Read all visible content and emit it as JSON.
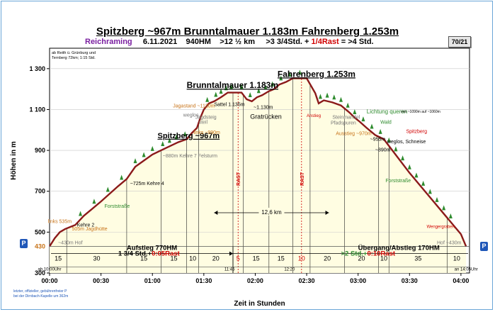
{
  "page_badge": "70/21",
  "title": {
    "part1": "Spitzberg ~967m",
    "part2": "Brunntalmauer 1.183m",
    "part3": "Fahrenberg 1.253m"
  },
  "subtitle": {
    "brand": "Reichraming",
    "date": "6.11.2021",
    "hm": "940HM",
    "km": ">12 ½ km",
    "time_pre": ">3 3/4Std. +",
    "rest": "1/4Rast",
    "total": "= >4 Std."
  },
  "start_note": [
    "ab Reith ü. Grünburg und",
    "Ternberg 72km; 1:15 Std."
  ],
  "footer_note": [
    "letzter, offizieller, gebührenfreier P",
    "bei der Dirnbach-Kapelle um 362m"
  ],
  "colors": {
    "profile": "#8b1a1a",
    "fill": "#fffde2",
    "line": "#000000",
    "green_label": "#2e8b2e",
    "orange_label": "#c8741a",
    "red_label": "#d00000",
    "grey_label": "#777777",
    "brand": "#7a1fa0",
    "markers": "#1f57b8"
  },
  "chart_data": {
    "type": "area",
    "ylabel": "Höhen in m",
    "xlabel": "Zeit in Stunden",
    "ylim": [
      300,
      1400
    ],
    "xlim_minutes": [
      0,
      245
    ],
    "y_ticks": [
      "300",
      "500",
      "700",
      "900",
      "1 100",
      "1 300"
    ],
    "x_ticks": [
      {
        "min": 0,
        "label": "00:00"
      },
      {
        "min": 30,
        "label": "00:30"
      },
      {
        "min": 60,
        "label": "01:00"
      },
      {
        "min": 90,
        "label": "01:30"
      },
      {
        "min": 120,
        "label": "02:00"
      },
      {
        "min": 150,
        "label": "02:30"
      },
      {
        "min": 180,
        "label": "03:00"
      },
      {
        "min": 210,
        "label": "03:30"
      },
      {
        "min": 240,
        "label": "04:00"
      }
    ],
    "profile": {
      "x": [
        0,
        3,
        6,
        9,
        12,
        15,
        20,
        30,
        40,
        45,
        50,
        55,
        60,
        65,
        70,
        75,
        80,
        83,
        86,
        88,
        90,
        93,
        96,
        100,
        104,
        108,
        112,
        115,
        118,
        121,
        124,
        128,
        131,
        134,
        138,
        142,
        146,
        150,
        155,
        157,
        160,
        165,
        170,
        175,
        178,
        181,
        185,
        190,
        195,
        200,
        210,
        220,
        230,
        236,
        240,
        243
      ],
      "y": [
        430,
        470,
        500,
        515,
        525,
        535,
        580,
        650,
        725,
        760,
        820,
        850,
        880,
        900,
        920,
        940,
        955,
        985,
        1010,
        1060,
        1100,
        1130,
        1140,
        1160,
        1183,
        1183,
        1183,
        1150,
        1140,
        1160,
        1170,
        1190,
        1200,
        1222,
        1235,
        1253,
        1253,
        1253,
        1180,
        1130,
        1145,
        1135,
        1120,
        1085,
        1060,
        1040,
        1010,
        975,
        955,
        900,
        790,
        690,
        590,
        530,
        490,
        430
      ]
    },
    "segments": [
      {
        "from": 0,
        "to": 10,
        "label": "15"
      },
      {
        "from": 10,
        "to": 45,
        "label": "30"
      },
      {
        "from": 45,
        "to": 65,
        "label": "15"
      },
      {
        "from": 65,
        "to": 80,
        "label": "15"
      },
      {
        "from": 80,
        "to": 87,
        "label": "10"
      },
      {
        "from": 87,
        "to": 107,
        "label": "20"
      },
      {
        "from": 107,
        "to": 113,
        "label": "5",
        "rest": true
      },
      {
        "from": 113,
        "to": 128,
        "label": "15"
      },
      {
        "from": 128,
        "to": 142,
        "label": "15"
      },
      {
        "from": 142,
        "to": 152,
        "label": "10",
        "rest": true
      },
      {
        "from": 152,
        "to": 172,
        "label": "20"
      },
      {
        "from": 172,
        "to": 192,
        "label": "20"
      },
      {
        "from": 192,
        "to": 198,
        "label": "10"
      },
      {
        "from": 198,
        "to": 232,
        "label": "35"
      },
      {
        "from": 232,
        "to": 243,
        "label": "10"
      }
    ],
    "rest_markers": [
      {
        "min": 110,
        "label": "RAST"
      },
      {
        "min": 147,
        "label": "RAST"
      }
    ],
    "time_marks": [
      {
        "min": 0,
        "label": "ab 10:00Uhr"
      },
      {
        "min": 105,
        "label": "11:45"
      },
      {
        "min": 140,
        "label": "12:20"
      },
      {
        "min": 243,
        "label": "an 14:05Uhr"
      }
    ],
    "start_elev_label": "430",
    "annotations": [
      {
        "x": 133,
        "y": 1260,
        "text": "Fahrenberg 1.253m",
        "style": "bold-underline",
        "size": 12
      },
      {
        "x": 80,
        "y": 1205,
        "text": "Brunntalmauer  1.183m",
        "style": "bold-underline",
        "size": 12
      },
      {
        "x": 63,
        "y": 960,
        "text": "Spitzberg ~967m",
        "style": "bold-underline",
        "size": 11
      },
      {
        "x": 72,
        "y": 1110,
        "text": "Jagastand ~1120m",
        "style": "orange",
        "size": 7
      },
      {
        "x": 78,
        "y": 1065,
        "text": "weglos",
        "style": "grey",
        "size": 7
      },
      {
        "x": 85,
        "y": 1055,
        "text": "Jagdsteig",
        "style": "grey",
        "size": 7
      },
      {
        "x": 87,
        "y": 1030,
        "text": "steil",
        "style": "grey",
        "size": 7
      },
      {
        "x": 84,
        "y": 980,
        "text": "links ~990m",
        "style": "orange",
        "size": 7
      },
      {
        "x": 96,
        "y": 1117,
        "text": "Sattel 1.135m",
        "style": "plain",
        "size": 7
      },
      {
        "x": 119,
        "y": 1103,
        "text": "~1.130m",
        "style": "plain",
        "size": 7
      },
      {
        "x": 117,
        "y": 1055,
        "text": "Gratrücken",
        "style": "plain",
        "size": 9
      },
      {
        "x": 66,
        "y": 865,
        "text": "~880m Kehre 7 Felsturm",
        "style": "grey",
        "size": 7
      },
      {
        "x": 47,
        "y": 730,
        "text": "~725m Kehre 4",
        "style": "plain",
        "size": 7
      },
      {
        "x": 32,
        "y": 620,
        "text": "Forststraße",
        "style": "green",
        "size": 7
      },
      {
        "x": -1,
        "y": 545,
        "text": "links 535m",
        "style": "orange",
        "size": 7
      },
      {
        "x": 16,
        "y": 527,
        "text": "Kehre 2",
        "style": "plain",
        "size": 7
      },
      {
        "x": 13,
        "y": 508,
        "text": "505m Jagdhütte",
        "style": "orange",
        "size": 7
      },
      {
        "x": 5,
        "y": 440,
        "text": "~430m Hof",
        "style": "grey",
        "size": 7
      },
      {
        "x": 185,
        "y": 1080,
        "text": "Lichtung queren",
        "style": "green",
        "size": 8
      },
      {
        "x": 205,
        "y": 1085,
        "text": "von ~1090m auf ~1060m",
        "style": "plain",
        "size": 5
      },
      {
        "x": 150,
        "y": 1063,
        "text": "Anstieg",
        "style": "red",
        "size": 6
      },
      {
        "x": 165,
        "y": 1055,
        "text": "Steinmandel",
        "style": "grey",
        "size": 7
      },
      {
        "x": 164,
        "y": 1027,
        "text": "Pfadspuren",
        "style": "grey",
        "size": 7
      },
      {
        "x": 193,
        "y": 1030,
        "text": "Wald",
        "style": "green",
        "size": 7
      },
      {
        "x": 208,
        "y": 985,
        "text": "Spitzberg",
        "style": "red",
        "size": 7
      },
      {
        "x": 167,
        "y": 975,
        "text": "Ausstieg ~970m",
        "style": "orange",
        "size": 7
      },
      {
        "x": 187,
        "y": 947,
        "text": "~955m",
        "style": "plain",
        "size": 7
      },
      {
        "x": 197,
        "y": 935,
        "text": "weglos, Schneise",
        "style": "plain",
        "size": 7
      },
      {
        "x": 190,
        "y": 895,
        "text": "~890m",
        "style": "plain",
        "size": 7
      },
      {
        "x": 196,
        "y": 745,
        "text": "Forststraße",
        "style": "green",
        "size": 7
      },
      {
        "x": 220,
        "y": 520,
        "text": "Wengergraben",
        "style": "red",
        "size": 6
      },
      {
        "x": 226,
        "y": 440,
        "text": "Hof ~430m",
        "style": "grey",
        "size": 7
      }
    ],
    "km_span": {
      "from": 96,
      "to": 163,
      "label": "12,6 km"
    },
    "summary": [
      {
        "x": 45,
        "y": 412,
        "text": "Aufstieg 770HM",
        "style": "bold"
      },
      {
        "x": 40,
        "y": 385,
        "text": "1 3/4 Std.+",
        "style": "bold",
        "suffix": "0:05Rast"
      },
      {
        "x": 180,
        "y": 412,
        "text": "Übergang/Abstieg 170HM",
        "style": "bold"
      },
      {
        "x": 170,
        "y": 385,
        "text": ">2 Std.+",
        "style": "bold-green",
        "suffix": "0:10Rast"
      }
    ]
  }
}
